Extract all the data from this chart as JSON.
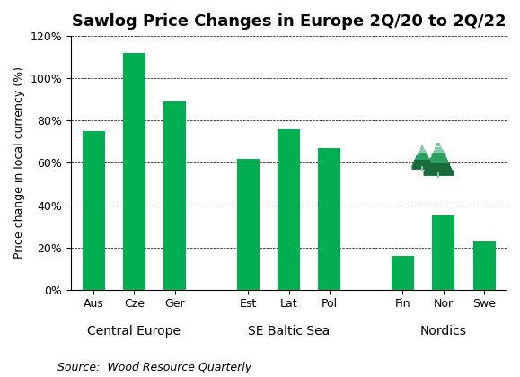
{
  "title": "Sawlog Price Changes in Europe 2Q/20 to 2Q/22",
  "ylabel": "Price change in local currency (%)",
  "source": "Source:  Wood Resource Quarterly",
  "bar_labels": [
    "Aus",
    "Cze",
    "Ger",
    "Est",
    "Lat",
    "Pol",
    "Fin",
    "Nor",
    "Swe"
  ],
  "bar_values": [
    75,
    112,
    89,
    62,
    76,
    67,
    16,
    35,
    23
  ],
  "group_labels": [
    "Central Europe",
    "SE Baltic Sea",
    "Nordics"
  ],
  "bar_color": "#00B050",
  "background_color": "#FFFFFF",
  "ylim": [
    0,
    120
  ],
  "yticks": [
    0,
    20,
    40,
    60,
    80,
    100,
    120
  ],
  "ytick_labels": [
    "0%",
    "20%",
    "40%",
    "60%",
    "80%",
    "100%",
    "120%"
  ],
  "title_fontsize": 13,
  "axis_fontsize": 9,
  "tick_fontsize": 9,
  "source_fontsize": 9,
  "group_label_fontsize": 10,
  "bar_width": 0.55,
  "tree_color_dark": "#1a6b3a",
  "tree_color_mid": "#2d9e5f",
  "tree_color_light": "#7dcba4",
  "tree_trunk_color": "#7dcba4"
}
